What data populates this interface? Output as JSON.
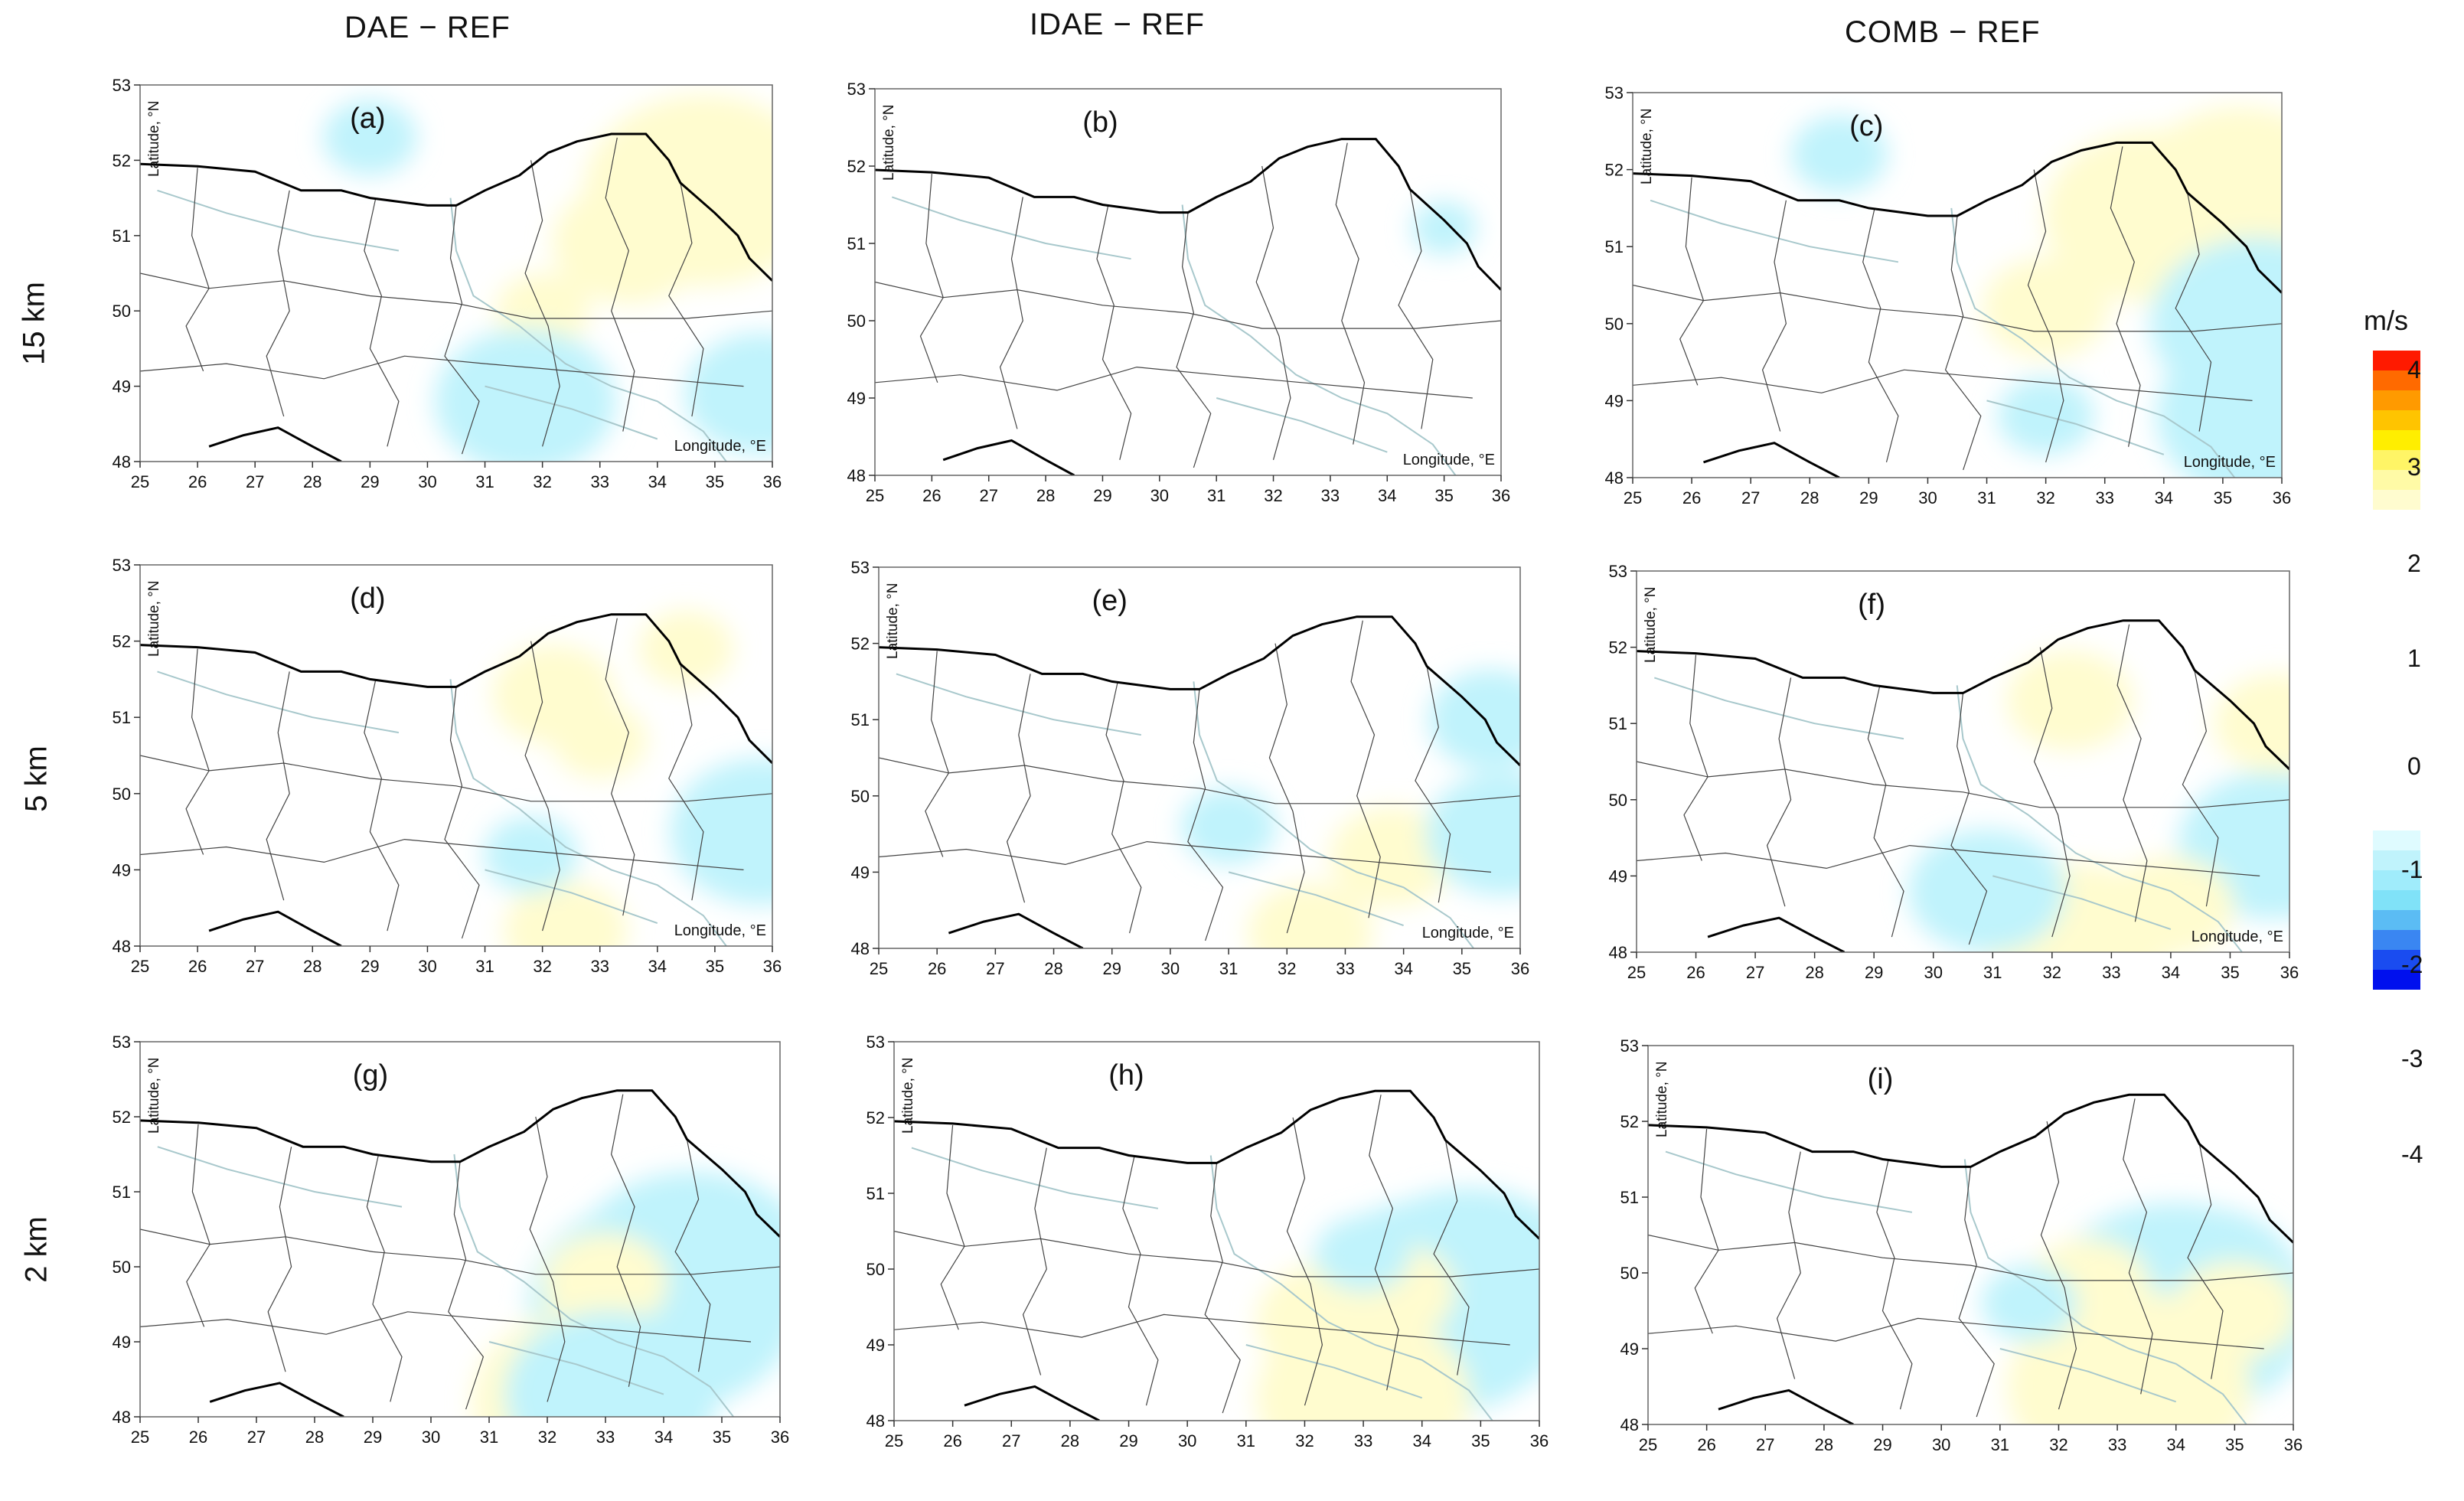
{
  "columns": [
    "DAE − REF",
    "IDAE − REF",
    "COMB − REF"
  ],
  "rows": [
    "15 km",
    "5 km",
    "2 km"
  ],
  "colorbar": {
    "unit": "m/s",
    "ticks": [
      "4",
      "3",
      "2",
      "1",
      "0",
      "-1",
      "-2",
      "-3",
      "-4"
    ],
    "positive_colors": [
      "#ff1a00",
      "#ff6a00",
      "#ff9a00",
      "#ffc400",
      "#ffee00",
      "#fff566",
      "#fffaa6",
      "#fffccf"
    ],
    "negative_colors": [
      "#dffbff",
      "#c0f3fc",
      "#a0ecfb",
      "#80e2f8",
      "#5bbcf4",
      "#3a86f2",
      "#1a4cf0",
      "#0010ee"
    ]
  },
  "axis": {
    "ylabel": "Latitude, °N",
    "xlabel": "Longitude, °E",
    "xticks": [
      "25",
      "26",
      "27",
      "28",
      "29",
      "30",
      "31",
      "32",
      "33",
      "34",
      "35",
      "36"
    ],
    "yticks": [
      "48",
      "49",
      "50",
      "51",
      "52",
      "53"
    ]
  },
  "chart_data": [
    {
      "type": "heatmap",
      "panel": "(a)",
      "row": "15 km",
      "column": "DAE − REF",
      "xlabel": "Longitude, °E",
      "ylabel": "Latitude, °N",
      "xlim": [
        25,
        36
      ],
      "ylim": [
        48,
        53
      ],
      "blobs": [
        {
          "lon": 34.8,
          "lat": 51.6,
          "value": 3.2
        },
        {
          "lon": 33.5,
          "lat": 50.9,
          "value": 2.0
        },
        {
          "lon": 32.0,
          "lat": 50.0,
          "value": 1.0
        },
        {
          "lon": 31.7,
          "lat": 48.8,
          "value": -2.2
        },
        {
          "lon": 35.8,
          "lat": 48.9,
          "value": -2.0
        },
        {
          "lon": 29.0,
          "lat": 52.3,
          "value": -0.6
        }
      ]
    },
    {
      "type": "heatmap",
      "panel": "(b)",
      "row": "15 km",
      "column": "IDAE − REF",
      "xlabel": "Longitude, °E",
      "ylabel": "Latitude, °N",
      "xlim": [
        25,
        36
      ],
      "ylim": [
        48,
        53
      ],
      "blobs": [
        {
          "lon": 35.0,
          "lat": 51.2,
          "value": -0.5
        }
      ]
    },
    {
      "type": "heatmap",
      "panel": "(c)",
      "row": "15 km",
      "column": "COMB − REF",
      "xlabel": "Longitude, °E",
      "ylabel": "Latitude, °N",
      "xlim": [
        25,
        36
      ],
      "ylim": [
        48,
        53
      ],
      "blobs": [
        {
          "lon": 35.3,
          "lat": 51.7,
          "value": 3.0
        },
        {
          "lon": 33.8,
          "lat": 51.4,
          "value": 2.8
        },
        {
          "lon": 32.0,
          "lat": 50.2,
          "value": 1.5
        },
        {
          "lon": 35.6,
          "lat": 50.0,
          "value": -3.0
        },
        {
          "lon": 35.7,
          "lat": 48.8,
          "value": -3.0
        },
        {
          "lon": 32.0,
          "lat": 48.8,
          "value": -1.0
        },
        {
          "lon": 28.5,
          "lat": 52.2,
          "value": -0.6
        }
      ]
    },
    {
      "type": "heatmap",
      "panel": "(d)",
      "row": "5 km",
      "column": "DAE − REF",
      "xlabel": "Longitude, °E",
      "ylabel": "Latitude, °N",
      "xlim": [
        25,
        36
      ],
      "ylim": [
        48,
        53
      ],
      "blobs": [
        {
          "lon": 32.2,
          "lat": 51.3,
          "value": 1.3
        },
        {
          "lon": 32.4,
          "lat": 48.2,
          "value": 1.5
        },
        {
          "lon": 35.8,
          "lat": 49.5,
          "value": -2.5
        },
        {
          "lon": 34.5,
          "lat": 51.9,
          "value": 0.8
        },
        {
          "lon": 33.0,
          "lat": 50.7,
          "value": 0.8
        },
        {
          "lon": 31.8,
          "lat": 49.2,
          "value": -0.8
        }
      ]
    },
    {
      "type": "heatmap",
      "panel": "(e)",
      "row": "5 km",
      "column": "IDAE − REF",
      "xlabel": "Longitude, °E",
      "ylabel": "Latitude, °N",
      "xlim": [
        25,
        36
      ],
      "ylim": [
        48,
        53
      ],
      "blobs": [
        {
          "lon": 32.4,
          "lat": 48.2,
          "value": 1.5
        },
        {
          "lon": 33.8,
          "lat": 49.2,
          "value": 1.2
        },
        {
          "lon": 35.7,
          "lat": 49.5,
          "value": -1.8
        },
        {
          "lon": 35.5,
          "lat": 51.0,
          "value": -1.2
        },
        {
          "lon": 31.0,
          "lat": 49.6,
          "value": -0.8
        }
      ]
    },
    {
      "type": "heatmap",
      "panel": "(f)",
      "row": "5 km",
      "column": "COMB − REF",
      "xlabel": "Longitude, °E",
      "ylabel": "Latitude, °N",
      "xlim": [
        25,
        36
      ],
      "ylim": [
        48,
        53
      ],
      "blobs": [
        {
          "lon": 32.3,
          "lat": 51.3,
          "value": 1.3
        },
        {
          "lon": 32.4,
          "lat": 48.2,
          "value": 2.5
        },
        {
          "lon": 35.7,
          "lat": 49.4,
          "value": -2.5
        },
        {
          "lon": 30.9,
          "lat": 48.8,
          "value": -1.8
        },
        {
          "lon": 34.0,
          "lat": 48.6,
          "value": 1.2
        },
        {
          "lon": 35.8,
          "lat": 51.0,
          "value": 1.3
        }
      ]
    },
    {
      "type": "heatmap",
      "panel": "(g)",
      "row": "2 km",
      "column": "DAE − REF",
      "xlabel": "",
      "ylabel": "Latitude, °N",
      "xlim": [
        25,
        36
      ],
      "ylim": [
        48,
        53
      ],
      "blobs": [
        {
          "lon": 34.5,
          "lat": 50.0,
          "value": -3.5
        },
        {
          "lon": 34.0,
          "lat": 49.5,
          "value": -4.0
        },
        {
          "lon": 33.0,
          "lat": 49.8,
          "value": 1.3
        },
        {
          "lon": 32.5,
          "lat": 49.0,
          "value": 1.0
        },
        {
          "lon": 32.8,
          "lat": 48.2,
          "value": 3.5
        },
        {
          "lon": 33.1,
          "lat": 48.3,
          "value": -3.0
        }
      ]
    },
    {
      "type": "heatmap",
      "panel": "(h)",
      "row": "2 km",
      "column": "IDAE − REF",
      "xlabel": "",
      "ylabel": "Latitude, °N",
      "xlim": [
        25,
        36
      ],
      "ylim": [
        48,
        53
      ],
      "blobs": [
        {
          "lon": 34.2,
          "lat": 49.5,
          "value": -4.0
        },
        {
          "lon": 34.8,
          "lat": 49.8,
          "value": -3.5
        },
        {
          "lon": 33.5,
          "lat": 49.7,
          "value": 1.5
        },
        {
          "lon": 32.5,
          "lat": 49.3,
          "value": 2.0
        },
        {
          "lon": 33.0,
          "lat": 48.3,
          "value": 3.0
        },
        {
          "lon": 33.0,
          "lat": 50.2,
          "value": -1.0
        }
      ]
    },
    {
      "type": "heatmap",
      "panel": "(i)",
      "row": "2 km",
      "column": "COMB − REF",
      "xlabel": "",
      "ylabel": "Latitude, °N",
      "xlim": [
        25,
        36
      ],
      "ylim": [
        48,
        53
      ],
      "blobs": [
        {
          "lon": 34.0,
          "lat": 49.5,
          "value": -4.0
        },
        {
          "lon": 34.5,
          "lat": 49.9,
          "value": -2.5
        },
        {
          "lon": 32.5,
          "lat": 49.8,
          "value": 1.3
        },
        {
          "lon": 33.2,
          "lat": 48.5,
          "value": 3.5
        },
        {
          "lon": 35.0,
          "lat": 49.5,
          "value": 1.5
        },
        {
          "lon": 31.5,
          "lat": 49.6,
          "value": -1.0
        }
      ]
    }
  ]
}
